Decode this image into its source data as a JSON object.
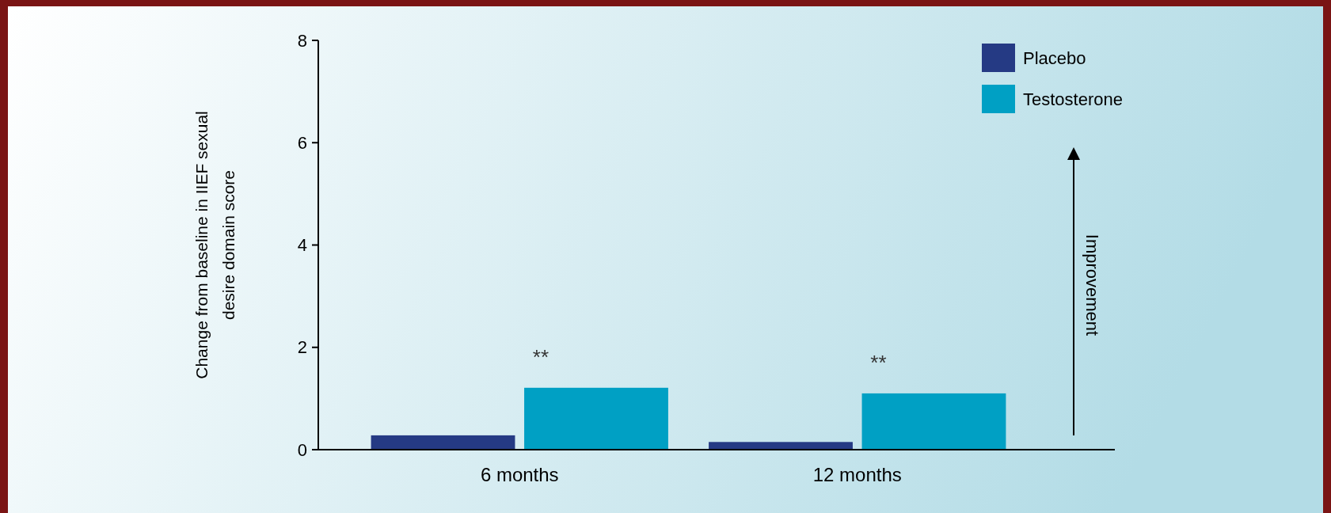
{
  "chart_data": {
    "type": "bar",
    "ylabel": "Change from baseline in IIEF sexual\ndesire domain score",
    "categories": [
      "6 months",
      "12 months"
    ],
    "series": [
      {
        "name": "Placebo",
        "color": "#253a84",
        "values": [
          0.28,
          0.15
        ]
      },
      {
        "name": "Testosterone",
        "color": "#00a0c4",
        "values": [
          1.21,
          1.1
        ]
      }
    ],
    "ylim": [
      0,
      8
    ],
    "yticks": [
      0,
      2,
      4,
      6,
      8
    ],
    "grid": false,
    "legend": "top right",
    "annotations": [
      "**",
      "**",
      "Improvement"
    ]
  }
}
